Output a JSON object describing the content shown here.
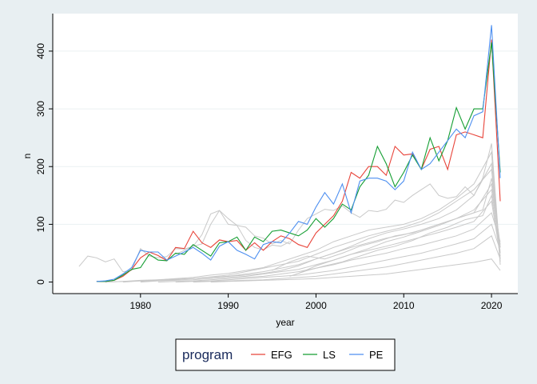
{
  "chart_data": {
    "type": "line",
    "title": "",
    "xlabel": "year",
    "ylabel": "n",
    "xlim": [
      1970,
      2023
    ],
    "ylim": [
      -20,
      465
    ],
    "xticks": [
      1980,
      1990,
      2000,
      2010,
      2020
    ],
    "yticks": [
      0,
      100,
      200,
      300,
      400
    ],
    "grid": "horizontal",
    "legend_title": "program",
    "legend_position": "bottom",
    "series": [
      {
        "name": "EFG",
        "color": "#e8443a",
        "x": [
          1975,
          1976,
          1977,
          1978,
          1979,
          1980,
          1981,
          1982,
          1983,
          1984,
          1985,
          1986,
          1987,
          1988,
          1989,
          1990,
          1991,
          1992,
          1993,
          1994,
          1995,
          1996,
          1997,
          1998,
          1999,
          2000,
          2001,
          2002,
          2003,
          2004,
          2005,
          2006,
          2007,
          2008,
          2009,
          2010,
          2011,
          2012,
          2013,
          2014,
          2015,
          2016,
          2017,
          2018,
          2019,
          2020,
          2021
        ],
        "y": [
          1,
          1,
          3,
          10,
          22,
          42,
          52,
          46,
          37,
          60,
          58,
          88,
          68,
          60,
          73,
          70,
          72,
          55,
          68,
          55,
          70,
          80,
          75,
          65,
          60,
          85,
          100,
          115,
          140,
          190,
          180,
          200,
          200,
          185,
          235,
          220,
          222,
          195,
          230,
          235,
          195,
          255,
          260,
          255,
          250,
          420,
          140
        ]
      },
      {
        "name": "LS",
        "color": "#149e32",
        "x": [
          1975,
          1976,
          1977,
          1978,
          1979,
          1980,
          1981,
          1982,
          1983,
          1984,
          1985,
          1986,
          1987,
          1988,
          1989,
          1990,
          1991,
          1992,
          1993,
          1994,
          1995,
          1996,
          1997,
          1998,
          1999,
          2000,
          2001,
          2002,
          2003,
          2004,
          2005,
          2006,
          2007,
          2008,
          2009,
          2010,
          2011,
          2012,
          2013,
          2014,
          2015,
          2016,
          2017,
          2018,
          2019,
          2020,
          2021
        ],
        "y": [
          1,
          1,
          3,
          12,
          22,
          25,
          48,
          38,
          37,
          50,
          48,
          65,
          55,
          45,
          68,
          70,
          78,
          55,
          78,
          70,
          88,
          90,
          85,
          80,
          90,
          110,
          95,
          110,
          135,
          125,
          165,
          185,
          235,
          205,
          165,
          190,
          220,
          195,
          250,
          210,
          245,
          302,
          265,
          300,
          300,
          415,
          190
        ]
      },
      {
        "name": "PE",
        "color": "#4d8ff0",
        "x": [
          1975,
          1976,
          1977,
          1978,
          1979,
          1980,
          1981,
          1982,
          1983,
          1984,
          1985,
          1986,
          1987,
          1988,
          1989,
          1990,
          1991,
          1992,
          1993,
          1994,
          1995,
          1996,
          1997,
          1998,
          1999,
          2000,
          2001,
          2002,
          2003,
          2004,
          2005,
          2006,
          2007,
          2008,
          2009,
          2010,
          2011,
          2012,
          2013,
          2014,
          2015,
          2016,
          2017,
          2018,
          2019,
          2020,
          2021
        ],
        "y": [
          1,
          2,
          5,
          14,
          25,
          55,
          52,
          52,
          38,
          45,
          52,
          60,
          50,
          38,
          62,
          70,
          55,
          48,
          40,
          65,
          70,
          68,
          85,
          105,
          100,
          130,
          155,
          135,
          170,
          120,
          175,
          180,
          180,
          175,
          160,
          175,
          225,
          195,
          205,
          225,
          245,
          265,
          250,
          288,
          295,
          445,
          180
        ]
      }
    ],
    "background_series_color": "#c9c9c9",
    "background_series": [
      {
        "x": [
          1973,
          1974,
          1975,
          1976,
          1977,
          1978,
          1979,
          1980,
          1981,
          1982,
          1983,
          1984,
          1985,
          1986,
          1987,
          1988,
          1989,
          1990,
          1991,
          1992,
          1993,
          1994,
          1995,
          1996,
          1997
        ],
        "y": [
          27,
          45,
          42,
          35,
          40,
          18,
          20,
          58,
          45,
          42,
          44,
          58,
          57,
          62,
          82,
          118,
          124,
          100,
          98,
          72,
          60,
          56,
          64,
          62,
          70
        ]
      },
      {
        "x": [
          1984,
          1985,
          1986,
          1987,
          1988,
          1989,
          1990,
          1991,
          1992,
          1993,
          1994,
          1995,
          1996,
          1997,
          1998,
          1999,
          2000,
          2001,
          2002,
          2003,
          2004,
          2005,
          2006,
          2007,
          2008,
          2009,
          2010,
          2011,
          2012,
          2013,
          2014,
          2015,
          2016,
          2017,
          2018,
          2019,
          2020,
          2021
        ],
        "y": [
          48,
          55,
          62,
          66,
          100,
          124,
          110,
          98,
          95,
          80,
          76,
          66,
          72,
          66,
          90,
          110,
          118,
          126,
          124,
          132,
          120,
          112,
          124,
          122,
          126,
          142,
          138,
          150,
          160,
          170,
          150,
          145,
          148,
          165,
          150,
          180,
          240,
          40
        ]
      },
      {
        "x": [
          1976,
          1978,
          1980,
          1982,
          1984,
          1986,
          1988,
          1990,
          1992,
          1994,
          1996,
          1998,
          2000,
          2002,
          2004,
          2006,
          2008,
          2010,
          2012,
          2014,
          2016,
          2018,
          2020,
          2021
        ],
        "y": [
          0,
          1,
          3,
          4,
          6,
          8,
          12,
          15,
          20,
          25,
          35,
          45,
          55,
          70,
          80,
          90,
          95,
          100,
          110,
          125,
          145,
          170,
          225,
          30
        ]
      },
      {
        "x": [
          1976,
          1978,
          1980,
          1982,
          1984,
          1986,
          1988,
          1990,
          1992,
          1994,
          1996,
          1998,
          2000,
          2002,
          2004,
          2006,
          2008,
          2010,
          2012,
          2014,
          2016,
          2018,
          2020,
          2021
        ],
        "y": [
          0,
          1,
          2,
          3,
          5,
          6,
          8,
          10,
          12,
          15,
          20,
          28,
          40,
          50,
          62,
          75,
          85,
          92,
          100,
          110,
          125,
          150,
          205,
          35
        ]
      },
      {
        "x": [
          1978,
          1980,
          1982,
          1984,
          1986,
          1988,
          1990,
          1992,
          1994,
          1996,
          1998,
          2000,
          2002,
          2004,
          2006,
          2008,
          2010,
          2012,
          2014,
          2016,
          2018,
          2020,
          2021
        ],
        "y": [
          0,
          2,
          4,
          5,
          6,
          9,
          12,
          18,
          24,
          30,
          36,
          48,
          60,
          70,
          80,
          88,
          95,
          105,
          120,
          140,
          160,
          195,
          50
        ]
      },
      {
        "x": [
          1980,
          1982,
          1984,
          1986,
          1988,
          1990,
          1992,
          1994,
          1996,
          1998,
          2000,
          2002,
          2004,
          2006,
          2008,
          2010,
          2012,
          2014,
          2016,
          2018,
          2020,
          2021
        ],
        "y": [
          1,
          3,
          4,
          6,
          8,
          10,
          14,
          18,
          24,
          30,
          40,
          50,
          60,
          68,
          76,
          82,
          90,
          100,
          110,
          125,
          160,
          60
        ]
      },
      {
        "x": [
          1980,
          1982,
          1984,
          1986,
          1988,
          1990,
          1992,
          1994,
          1996,
          1998,
          2000,
          2002,
          2004,
          2006,
          2008,
          2010,
          2012,
          2014,
          2016,
          2018,
          2020,
          2021
        ],
        "y": [
          0,
          2,
          3,
          4,
          6,
          8,
          10,
          14,
          18,
          22,
          30,
          38,
          48,
          55,
          62,
          70,
          78,
          86,
          95,
          105,
          140,
          45
        ]
      },
      {
        "x": [
          1982,
          1984,
          1986,
          1988,
          1990,
          1992,
          1994,
          1996,
          1998,
          2000,
          2002,
          2004,
          2006,
          2008,
          2010,
          2012,
          2014,
          2016,
          2018,
          2020,
          2021
        ],
        "y": [
          0,
          1,
          2,
          4,
          6,
          8,
          10,
          14,
          18,
          24,
          30,
          38,
          44,
          50,
          58,
          64,
          72,
          80,
          92,
          120,
          70
        ]
      },
      {
        "x": [
          1984,
          1986,
          1988,
          1990,
          1992,
          1994,
          1996,
          1998,
          2000,
          2002,
          2004,
          2006,
          2008,
          2010,
          2012,
          2014,
          2016,
          2018,
          2020,
          2021
        ],
        "y": [
          0,
          1,
          2,
          4,
          6,
          8,
          10,
          12,
          16,
          20,
          26,
          32,
          38,
          44,
          50,
          58,
          66,
          75,
          100,
          55
        ]
      },
      {
        "x": [
          1986,
          1988,
          1990,
          1992,
          1994,
          1996,
          1998,
          2000,
          2002,
          2004,
          2006,
          2008,
          2010,
          2012,
          2014,
          2016,
          2018,
          2020,
          2021
        ],
        "y": [
          0,
          1,
          2,
          3,
          4,
          6,
          8,
          10,
          14,
          18,
          22,
          26,
          32,
          38,
          44,
          50,
          58,
          80,
          40
        ]
      },
      {
        "x": [
          1988,
          1990,
          1992,
          1994,
          1996,
          1998,
          2000,
          2002,
          2004,
          2006,
          2008,
          2010,
          2012,
          2014,
          2016,
          2018,
          2020,
          2021
        ],
        "y": [
          0,
          1,
          2,
          3,
          4,
          5,
          6,
          8,
          10,
          12,
          14,
          18,
          22,
          26,
          30,
          34,
          40,
          20
        ]
      },
      {
        "x": [
          1995,
          1997,
          1999,
          2001,
          2003,
          2005,
          2007,
          2009,
          2011,
          2013,
          2015,
          2017,
          2019,
          2020,
          2021
        ],
        "y": [
          20,
          35,
          45,
          40,
          50,
          62,
          70,
          80,
          85,
          95,
          105,
          115,
          125,
          180,
          60
        ]
      },
      {
        "x": [
          1997,
          1999,
          2001,
          2003,
          2005,
          2007,
          2009,
          2011,
          2013,
          2015,
          2017,
          2019,
          2020,
          2021
        ],
        "y": [
          10,
          20,
          28,
          35,
          45,
          55,
          62,
          72,
          85,
          95,
          108,
          115,
          150,
          50
        ]
      },
      {
        "x": [
          1998,
          2000,
          2002,
          2004,
          2006,
          2008,
          2010,
          2012,
          2014,
          2016,
          2018,
          2020,
          2021
        ],
        "y": [
          15,
          28,
          38,
          48,
          58,
          70,
          78,
          88,
          98,
          110,
          120,
          170,
          65
        ]
      }
    ]
  },
  "legend": {
    "title": "program",
    "items": [
      "EFG",
      "LS",
      "PE"
    ]
  }
}
